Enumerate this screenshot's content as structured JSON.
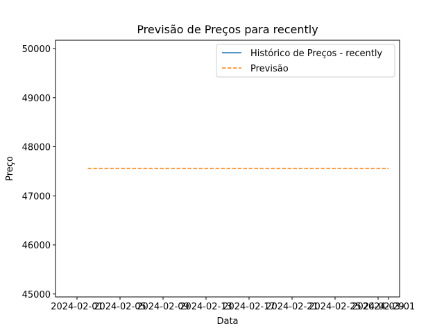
{
  "chart_data": {
    "type": "line",
    "title": "Previsão de Preços para recently",
    "xlabel": "Data",
    "ylabel": "Preço",
    "xlim": [
      "2024-01-30",
      "2024-03-02"
    ],
    "ylim": [
      44940,
      50170
    ],
    "x_ticks": [
      "2024-02-01",
      "2024-02-05",
      "2024-02-09",
      "2024-02-13",
      "2024-02-17",
      "2024-02-21",
      "2024-02-25",
      "2024-02-29",
      "2024-03-01"
    ],
    "y_ticks": [
      45000,
      46000,
      47000,
      48000,
      49000,
      50000
    ],
    "grid": false,
    "legend_position": "top-right",
    "series": [
      {
        "name": "Histórico de Preços - recently",
        "color": "#1f77b4",
        "style": "solid",
        "points": []
      },
      {
        "name": "Previsão",
        "color": "#ff7f0e",
        "style": "dashed",
        "points": [
          {
            "x": "2024-02-02",
            "y": 47560
          },
          {
            "x": "2024-03-01",
            "y": 47560
          }
        ]
      }
    ]
  }
}
